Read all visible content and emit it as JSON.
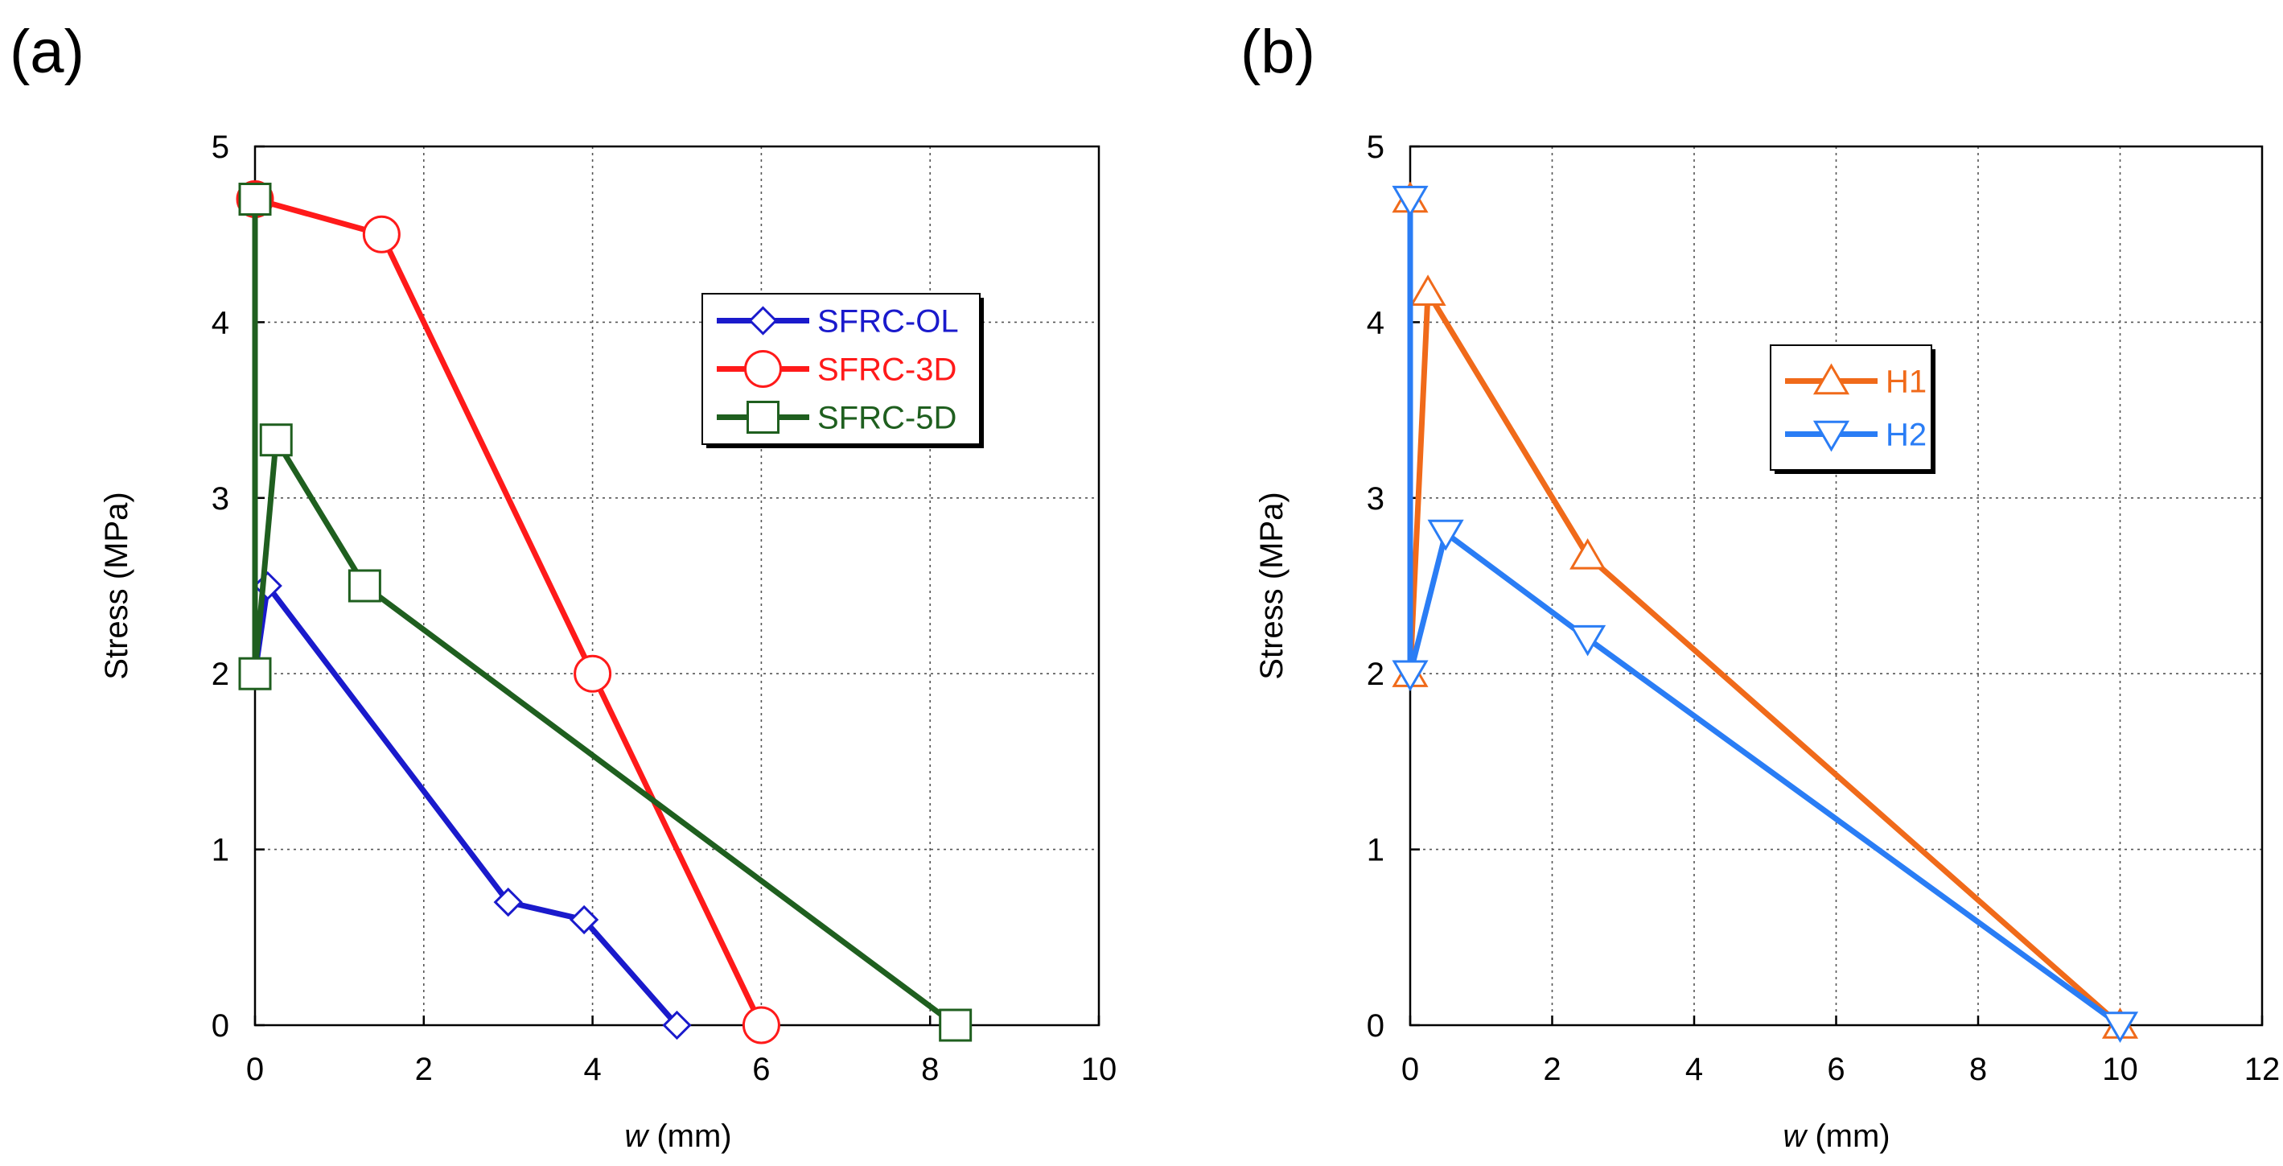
{
  "chart_data": [
    {
      "type": "line",
      "panel_label": "(a)",
      "xlabel_italic": "w",
      "xlabel_unit": " (mm)",
      "ylabel": "Stress (MPa)",
      "xlim": [
        0,
        10
      ],
      "ylim": [
        0,
        5
      ],
      "xticks": [
        0,
        2,
        4,
        6,
        8,
        10
      ],
      "yticks": [
        0,
        1,
        2,
        3,
        4,
        5
      ],
      "grid": true,
      "legend_position": "right-middle",
      "series": [
        {
          "name": "SFRC-OL",
          "color": "#1a1acc",
          "marker": "diamond",
          "text_color": "#1a1acc",
          "x": [
            0,
            0,
            0.15,
            3.0,
            3.9,
            5.0
          ],
          "y": [
            4.7,
            2.0,
            2.5,
            0.7,
            0.6,
            0.0
          ]
        },
        {
          "name": "SFRC-3D",
          "color": "#ff1a1a",
          "marker": "circle",
          "text_color": "#ff1a1a",
          "x": [
            0,
            1.5,
            4.0,
            6.0
          ],
          "y": [
            4.7,
            4.5,
            2.0,
            0.0
          ]
        },
        {
          "name": "SFRC-5D",
          "color": "#1f5f1f",
          "marker": "square",
          "text_color": "#1f5f1f",
          "x": [
            0,
            0,
            0.25,
            1.3,
            8.3
          ],
          "y": [
            4.7,
            2.0,
            3.33,
            2.5,
            0.0
          ]
        }
      ]
    },
    {
      "type": "line",
      "panel_label": "(b)",
      "xlabel_italic": "w",
      "xlabel_unit": " (mm)",
      "ylabel": "Stress (MPa)",
      "xlim": [
        0,
        12
      ],
      "ylim": [
        0,
        5
      ],
      "xticks": [
        0,
        2,
        4,
        6,
        8,
        10,
        12
      ],
      "yticks": [
        0,
        1,
        2,
        3,
        4,
        5
      ],
      "grid": true,
      "legend_position": "upper-middle",
      "series": [
        {
          "name": "H1",
          "color": "#f06a1a",
          "marker": "triangle-up",
          "text_color": "#f06a1a",
          "x": [
            0,
            0,
            0.25,
            2.5,
            10.0
          ],
          "y": [
            4.7,
            2.0,
            4.17,
            2.67,
            0.0
          ]
        },
        {
          "name": "H2",
          "color": "#2a7df5",
          "marker": "triangle-down",
          "text_color": "#2a7df5",
          "x": [
            0,
            0,
            0.5,
            2.5,
            10.0
          ],
          "y": [
            4.7,
            2.0,
            2.8,
            2.2,
            0.0
          ]
        }
      ]
    }
  ]
}
